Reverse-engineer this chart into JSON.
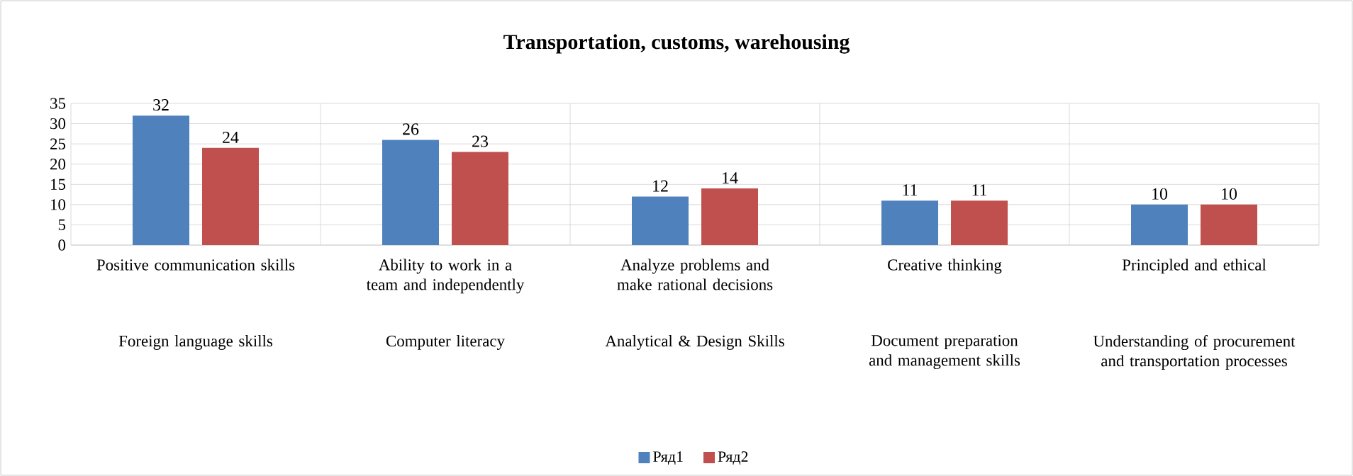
{
  "chart_data": {
    "type": "bar",
    "title": "Transportation, customs, warehousing",
    "categories": [
      "Positive communication skills",
      "Ability to work in a team and independently",
      "Analyze problems and make rational decisions",
      "Creative thinking",
      "Principled and ethical"
    ],
    "annotations": [
      "Foreign language skills",
      "Computer literacy",
      "Analytical & Design Skills",
      "Document preparation and management skills",
      "Understanding of procurement and transportation processes"
    ],
    "series": [
      {
        "name": "Ряд1",
        "color": "#4f81bd",
        "values": [
          32,
          26,
          12,
          11,
          10
        ]
      },
      {
        "name": "Ряд2",
        "color": "#c0504d",
        "values": [
          24,
          23,
          14,
          11,
          10
        ]
      }
    ],
    "ylim": [
      0,
      35
    ],
    "yticks": [
      0,
      5,
      10,
      15,
      20,
      25,
      30,
      35
    ],
    "grid": true,
    "data_labels": true,
    "legend": "bottom"
  }
}
